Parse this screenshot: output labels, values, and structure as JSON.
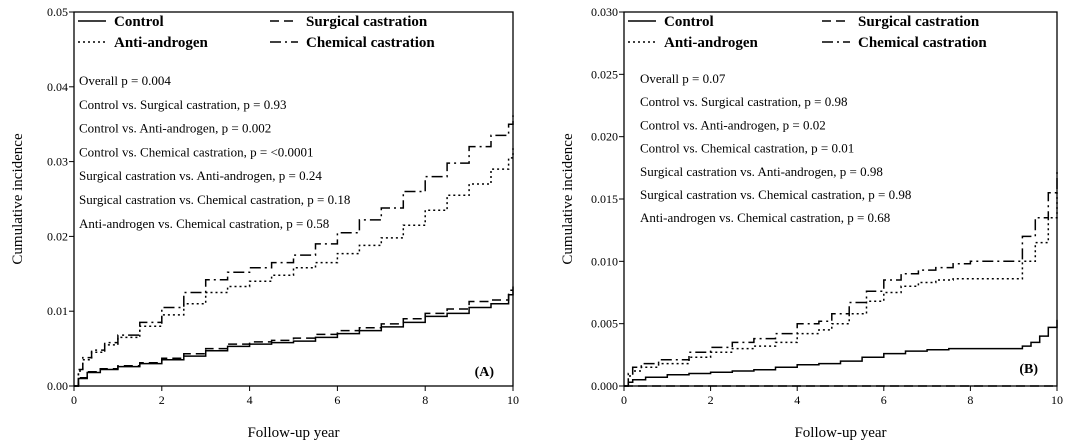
{
  "chart_data": [
    {
      "type": "line",
      "panel_label": "(A)",
      "xlabel": "Follow-up year",
      "ylabel": "Cumulative incidence",
      "xlim": [
        0,
        10
      ],
      "ylim": [
        0,
        0.05
      ],
      "xticks": [
        0,
        2,
        4,
        6,
        8,
        10
      ],
      "xtick_labels": [
        "0",
        "2",
        "4",
        "6",
        "8",
        "10"
      ],
      "yticks": [
        0,
        0.01,
        0.02,
        0.03,
        0.04,
        0.05
      ],
      "ytick_labels": [
        "0.00",
        "0.01",
        "0.02",
        "0.03",
        "0.04",
        "0.05"
      ],
      "legend_position": "top",
      "annotations": [
        "Overall p = 0.004",
        "Control vs. Surgical castration, p = 0.93",
        "Control vs. Anti-androgen, p = 0.002",
        "Control vs. Chemical castration, p = <0.0001",
        "Surgical castration vs. Anti-androgen, p = 0.24",
        "Surgical castration vs. Chemical castration, p = 0.18",
        "Anti-androgen vs. Chemical castration, p = 0.58"
      ],
      "series": [
        {
          "name": "Control",
          "dash": "solid",
          "x": [
            0,
            0.1,
            0.3,
            0.6,
            1,
            1.5,
            2,
            2.5,
            3,
            3.5,
            4,
            4.5,
            5,
            5.5,
            6,
            6.5,
            7,
            7.5,
            8,
            8.5,
            9,
            9.5,
            9.9,
            10
          ],
          "y": [
            0,
            0.001,
            0.0018,
            0.0022,
            0.0026,
            0.003,
            0.0035,
            0.004,
            0.0047,
            0.0053,
            0.0056,
            0.0058,
            0.006,
            0.0065,
            0.007,
            0.0074,
            0.0079,
            0.0085,
            0.0093,
            0.0097,
            0.0105,
            0.011,
            0.0122,
            0.0127
          ]
        },
        {
          "name": "Surgical castration",
          "dash": "dashed",
          "x": [
            0,
            0.1,
            0.3,
            0.6,
            1,
            1.5,
            2,
            2.5,
            3,
            3.5,
            4,
            4.5,
            5,
            5.5,
            6,
            6.5,
            7,
            7.5,
            8,
            8.5,
            9,
            9.5,
            9.9,
            10
          ],
          "y": [
            0,
            0.0011,
            0.0019,
            0.0023,
            0.0027,
            0.0031,
            0.0037,
            0.0043,
            0.005,
            0.0056,
            0.0059,
            0.0061,
            0.0064,
            0.0069,
            0.0074,
            0.0078,
            0.0083,
            0.009,
            0.0097,
            0.0103,
            0.0113,
            0.0115,
            0.0128,
            0.0133
          ]
        },
        {
          "name": "Anti-androgen",
          "dash": "dotted",
          "x": [
            0,
            0.1,
            0.2,
            0.4,
            0.7,
            1,
            1.5,
            2,
            2.5,
            3,
            3.5,
            4,
            4.5,
            5,
            5.5,
            6,
            6.5,
            7,
            7.5,
            8,
            8.5,
            9,
            9.5,
            9.9,
            10
          ],
          "y": [
            0,
            0.002,
            0.0035,
            0.0045,
            0.0055,
            0.0065,
            0.008,
            0.0095,
            0.011,
            0.0125,
            0.0133,
            0.014,
            0.0148,
            0.0158,
            0.0165,
            0.0177,
            0.0188,
            0.0198,
            0.0215,
            0.0235,
            0.0255,
            0.027,
            0.029,
            0.0305,
            0.0318
          ]
        },
        {
          "name": "Chemical castration",
          "dash": "dashdot",
          "x": [
            0,
            0.1,
            0.2,
            0.4,
            0.7,
            1,
            1.5,
            2,
            2.5,
            3,
            3.5,
            4,
            4.5,
            5,
            5.5,
            6,
            6.5,
            7,
            7.5,
            8,
            8.5,
            9,
            9.5,
            9.9,
            10
          ],
          "y": [
            0,
            0.0022,
            0.0038,
            0.0048,
            0.0058,
            0.0068,
            0.0085,
            0.0105,
            0.0125,
            0.0142,
            0.0152,
            0.0158,
            0.0165,
            0.0175,
            0.019,
            0.0205,
            0.0222,
            0.0238,
            0.026,
            0.028,
            0.0298,
            0.032,
            0.0335,
            0.035,
            0.0362
          ]
        }
      ]
    },
    {
      "type": "line",
      "panel_label": "(B)",
      "xlabel": "Follow-up year",
      "ylabel": "Cumulative incidence",
      "xlim": [
        0,
        10
      ],
      "ylim": [
        0,
        0.03
      ],
      "xticks": [
        0,
        2,
        4,
        6,
        8,
        10
      ],
      "xtick_labels": [
        "0",
        "2",
        "4",
        "6",
        "8",
        "10"
      ],
      "yticks": [
        0,
        0.005,
        0.01,
        0.015,
        0.02,
        0.025,
        0.03
      ],
      "ytick_labels": [
        "0.000",
        "0.005",
        "0.010",
        "0.015",
        "0.020",
        "0.025",
        "0.030"
      ],
      "legend_position": "top",
      "annotations": [
        "Overall p = 0.07",
        "Control vs. Surgical castration, p = 0.98",
        "Control vs. Anti-androgen, p = 0.02",
        "Control vs. Chemical castration, p = 0.01",
        "Surgical castration vs. Anti-androgen, p = 0.98",
        "Surgical castration vs. Chemical castration, p = 0.98",
        "Anti-androgen vs. Chemical castration, p = 0.68"
      ],
      "series": [
        {
          "name": "Control",
          "dash": "solid",
          "x": [
            0,
            0.1,
            0.2,
            0.5,
            1,
            1.5,
            2,
            2.5,
            3,
            3.5,
            4,
            4.5,
            5,
            5.5,
            6,
            6.5,
            7,
            7.5,
            8,
            8.5,
            9,
            9.2,
            9.4,
            9.6,
            9.8,
            10
          ],
          "y": [
            0,
            0.0003,
            0.0005,
            0.0007,
            0.0009,
            0.001,
            0.0011,
            0.0012,
            0.0013,
            0.0015,
            0.0017,
            0.0018,
            0.002,
            0.0023,
            0.0026,
            0.0028,
            0.0029,
            0.003,
            0.003,
            0.003,
            0.003,
            0.0032,
            0.0035,
            0.004,
            0.0047,
            0.0053
          ]
        },
        {
          "name": "Surgical castration",
          "dash": "dashed",
          "x": [
            0,
            10
          ],
          "y": [
            0,
            0
          ]
        },
        {
          "name": "Anti-androgen",
          "dash": "dotted",
          "x": [
            0,
            0.1,
            0.2,
            0.4,
            0.8,
            1.5,
            2,
            2.5,
            3,
            3.5,
            4,
            4.5,
            4.8,
            5.2,
            5.6,
            6,
            6.4,
            6.8,
            7.2,
            7.6,
            8,
            8.5,
            9,
            9.2,
            9.5,
            9.8,
            10
          ],
          "y": [
            0,
            0.0008,
            0.0012,
            0.0015,
            0.0018,
            0.0023,
            0.0027,
            0.003,
            0.0032,
            0.0035,
            0.0042,
            0.0045,
            0.005,
            0.0058,
            0.0068,
            0.0075,
            0.008,
            0.0083,
            0.0085,
            0.0086,
            0.0086,
            0.0086,
            0.0086,
            0.01,
            0.0115,
            0.0135,
            0.0158
          ]
        },
        {
          "name": "Chemical castration",
          "dash": "dashdot",
          "x": [
            0,
            0.1,
            0.2,
            0.4,
            0.8,
            1.5,
            2,
            2.5,
            3,
            3.5,
            4,
            4.5,
            4.8,
            5.2,
            5.6,
            6,
            6.4,
            6.8,
            7.2,
            7.6,
            8,
            8.5,
            9,
            9.2,
            9.5,
            9.8,
            10
          ],
          "y": [
            0,
            0.001,
            0.0015,
            0.0018,
            0.0021,
            0.0027,
            0.0031,
            0.0035,
            0.0038,
            0.0042,
            0.005,
            0.0052,
            0.0058,
            0.0067,
            0.0076,
            0.0085,
            0.009,
            0.0093,
            0.0095,
            0.0098,
            0.01,
            0.01,
            0.01,
            0.012,
            0.0135,
            0.0155,
            0.0172
          ]
        }
      ]
    }
  ]
}
